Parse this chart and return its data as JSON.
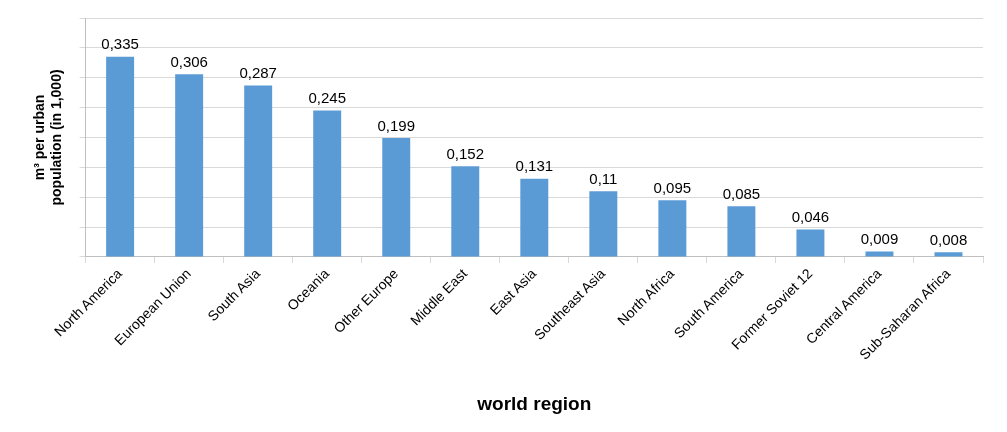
{
  "chart_data": {
    "type": "bar",
    "xlabel": "world region",
    "ylabel": "m³ per urban population (in 1,000)",
    "categories": [
      "North America",
      "European Union",
      "South Asia",
      "Oceania",
      "Other Europe",
      "Middle East",
      "East Asia",
      "Southeast Asia",
      "North Africa",
      "South America",
      "Former Soviet 12",
      "Central America",
      "Sub-Saharan Africa"
    ],
    "values": [
      0.335,
      0.306,
      0.287,
      0.245,
      0.199,
      0.152,
      0.131,
      0.11,
      0.095,
      0.085,
      0.046,
      0.009,
      0.008
    ],
    "value_labels": [
      "0,335",
      "0,306",
      "0,287",
      "0,245",
      "0,199",
      "0,152",
      "0,131",
      "0,11",
      "0,095",
      "0,085",
      "0,046",
      "0,009",
      "0,008"
    ],
    "color": "#5b9bd5",
    "ylim": [
      0,
      0.4
    ],
    "yticks": [
      {
        "value": 0,
        "label": null
      },
      {
        "value": 0.05,
        "label": null
      },
      {
        "value": 0.1,
        "label": null
      },
      {
        "value": 0.15,
        "label": null
      },
      {
        "value": 0.2,
        "label": null
      },
      {
        "value": 0.25,
        "label": null
      },
      {
        "value": 0.3,
        "label": null
      },
      {
        "value": 0.35,
        "label": null
      },
      {
        "value": 0.4,
        "label": null
      }
    ],
    "grid": "y",
    "tick_labels": "x",
    "legend": false
  }
}
